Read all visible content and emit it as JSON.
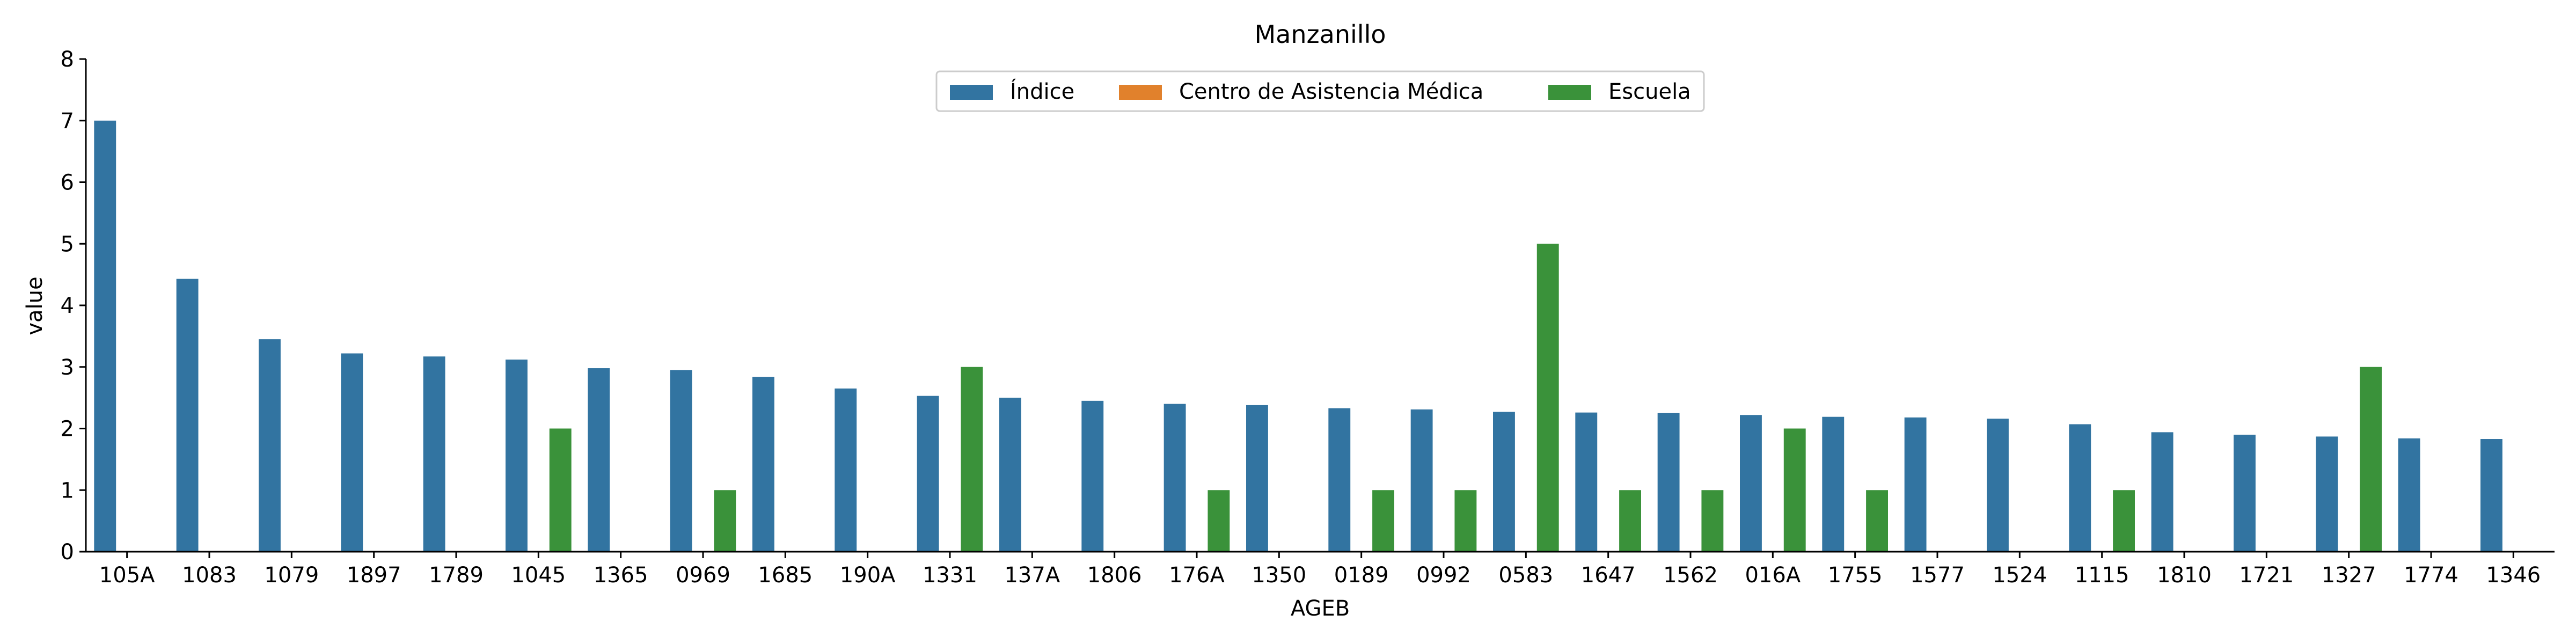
{
  "chart_data": {
    "type": "bar",
    "title": "Manzanillo",
    "xlabel": "AGEB",
    "ylabel": "value",
    "ylim": [
      0,
      8
    ],
    "yticks": [
      0,
      1,
      2,
      3,
      4,
      5,
      6,
      7,
      8
    ],
    "grid": false,
    "legend_position": "top-center",
    "categories": [
      "105A",
      "1083",
      "1079",
      "1897",
      "1789",
      "1045",
      "1365",
      "0969",
      "1685",
      "190A",
      "1331",
      "137A",
      "1806",
      "176A",
      "1350",
      "0189",
      "0992",
      "0583",
      "1647",
      "1562",
      "016A",
      "1755",
      "1577",
      "1524",
      "1115",
      "1810",
      "1721",
      "1327",
      "1774",
      "1346"
    ],
    "series": [
      {
        "name": "Índice",
        "color": "#3274a1",
        "values": [
          7.0,
          4.43,
          3.45,
          3.22,
          3.17,
          3.12,
          2.98,
          2.95,
          2.84,
          2.65,
          2.53,
          2.5,
          2.45,
          2.4,
          2.38,
          2.33,
          2.31,
          2.27,
          2.26,
          2.25,
          2.22,
          2.19,
          2.18,
          2.16,
          2.07,
          1.94,
          1.9,
          1.87,
          1.84,
          1.83
        ]
      },
      {
        "name": "Centro de Asistencia Médica",
        "color": "#e1812c",
        "values": [
          0,
          0,
          0,
          0,
          0,
          0,
          0,
          0,
          0,
          0,
          0,
          0,
          0,
          0,
          0,
          0,
          0,
          0,
          0,
          0,
          0,
          0,
          0,
          0,
          0,
          0,
          0,
          0,
          0,
          0
        ]
      },
      {
        "name": "Escuela",
        "color": "#3a923a",
        "values": [
          0,
          0,
          0,
          0,
          0,
          2,
          0,
          1,
          0,
          0,
          3,
          0,
          0,
          1,
          0,
          1,
          1,
          5,
          1,
          1,
          2,
          1,
          0,
          0,
          1,
          0,
          0,
          3,
          0,
          0
        ]
      }
    ]
  }
}
